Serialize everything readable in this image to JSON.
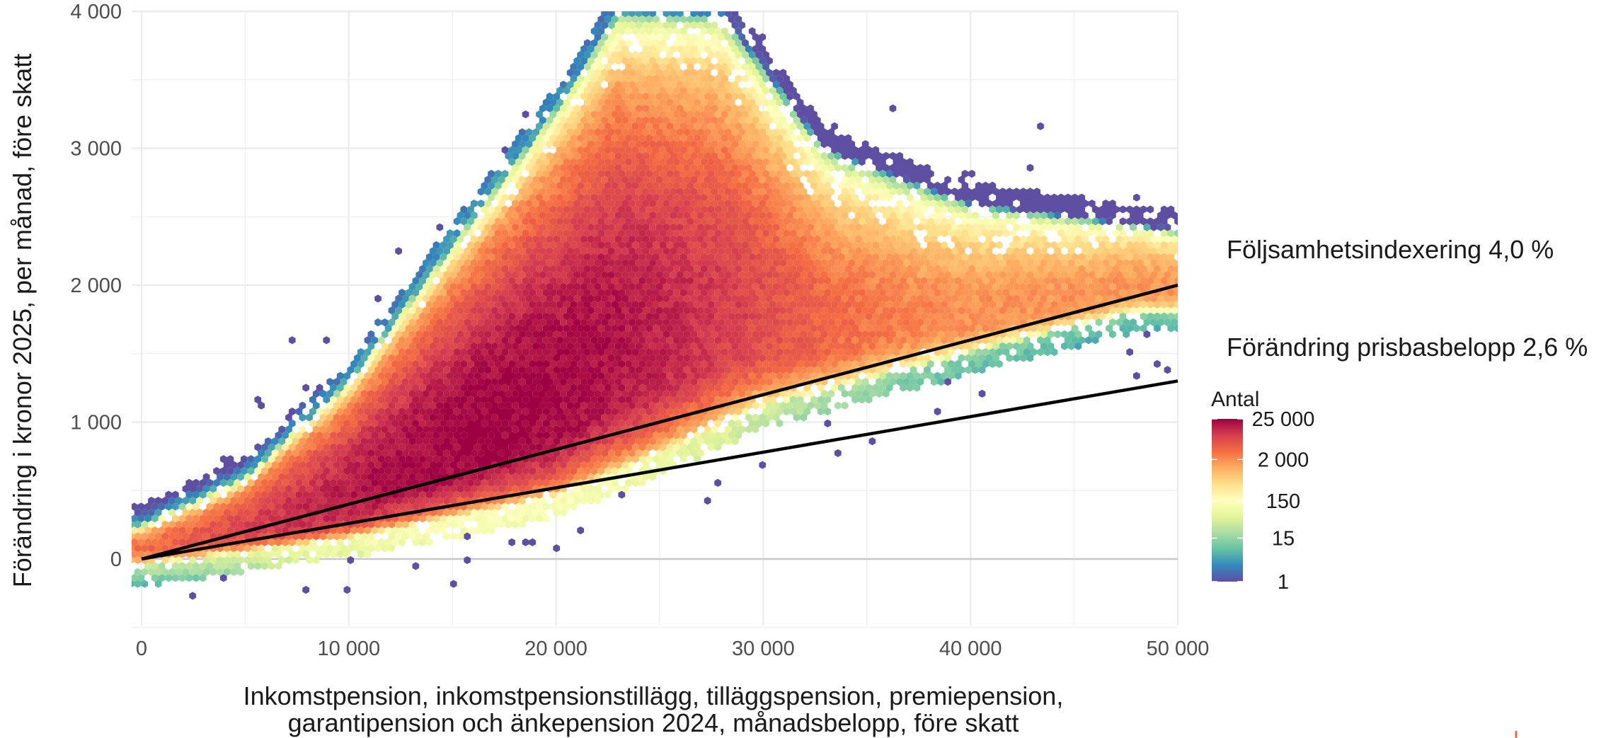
{
  "chart_data": {
    "type": "heatmap",
    "subtype": "hexbin",
    "title": "",
    "xlabel_lines": [
      "Inkomstpension, inkomstpensionstillägg, tilläggspension, premiepension,",
      "garantipension och änkepension 2024, månadsbelopp, före skatt"
    ],
    "ylabel": "Förändring i kronor 2025, per månad, före skatt",
    "xlim": [
      -500,
      50000
    ],
    "ylim": [
      -500,
      4000
    ],
    "x_ticks": [
      {
        "value": 0,
        "label": "0"
      },
      {
        "value": 10000,
        "label": "10 000"
      },
      {
        "value": 20000,
        "label": "20 000"
      },
      {
        "value": 30000,
        "label": "30 000"
      },
      {
        "value": 40000,
        "label": "40 000"
      },
      {
        "value": 50000,
        "label": "50 000"
      }
    ],
    "y_ticks": [
      {
        "value": 0,
        "label": "0"
      },
      {
        "value": 1000,
        "label": "1 000"
      },
      {
        "value": 2000,
        "label": "2 000"
      },
      {
        "value": 3000,
        "label": "3 000"
      },
      {
        "value": 4000,
        "label": "4 000"
      }
    ],
    "grid": true,
    "reference_lines": [
      {
        "label": "Följsamhetsindexering 4,0 %",
        "slope": 0.04,
        "x": [
          0,
          50000
        ],
        "y": [
          0,
          2000
        ]
      },
      {
        "label": "Förändring prisbasbelopp 2,6 %",
        "slope": 0.026,
        "x": [
          0,
          50000
        ],
        "y": [
          0,
          1300
        ]
      }
    ],
    "density": {
      "description_ridge_peak": {
        "x": 16000,
        "y": 500
      },
      "upper_envelope": [
        [
          0,
          250
        ],
        [
          5000,
          600
        ],
        [
          10000,
          1300
        ],
        [
          15000,
          2300
        ],
        [
          20000,
          3300
        ],
        [
          23000,
          4000
        ],
        [
          28000,
          4000
        ],
        [
          33000,
          3000
        ],
        [
          40000,
          2600
        ],
        [
          50000,
          2400
        ]
      ],
      "lower_envelope": [
        [
          0,
          -50
        ],
        [
          10000,
          150
        ],
        [
          20000,
          450
        ],
        [
          25000,
          750
        ],
        [
          30000,
          1100
        ],
        [
          40000,
          1500
        ],
        [
          48000,
          1800
        ]
      ],
      "max_count": 25000,
      "min_count": 1
    },
    "colorbar": {
      "title": "Antal",
      "scale": "log",
      "ticks": [
        {
          "value": 25000,
          "label": "25 000"
        },
        {
          "value": 2000,
          "label": "2 000"
        },
        {
          "value": 150,
          "label": "150"
        },
        {
          "value": 15,
          "label": "15"
        },
        {
          "value": 1,
          "label": "1"
        }
      ],
      "colors": [
        "#5E4FA2",
        "#3288BD",
        "#66C2A5",
        "#ABDDA4",
        "#E6F598",
        "#FFFFBF",
        "#FEE08B",
        "#FDAE61",
        "#F46D43",
        "#D53E4F",
        "#9E0142"
      ]
    },
    "colors": {
      "line": "#000000",
      "grid": "#ebebeb",
      "zero_line": "#c8c8c8"
    }
  }
}
